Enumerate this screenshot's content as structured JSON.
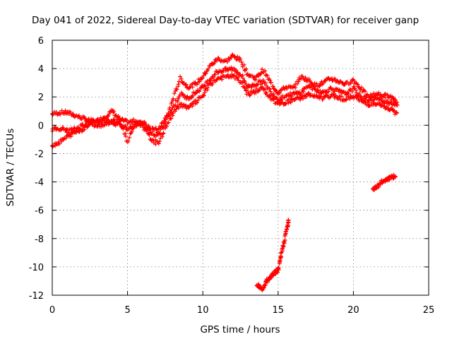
{
  "chart_data": {
    "type": "scatter",
    "title": "Day 041 of 2022, Sidereal Day-to-day VTEC variation (SDTVAR) for receiver ganp",
    "xlabel": "GPS time / hours",
    "ylabel": "SDTVAR / TECUs",
    "xlim": [
      0,
      25
    ],
    "ylim": [
      -12,
      6
    ],
    "xticks": [
      0,
      5,
      10,
      15,
      20,
      25
    ],
    "yticks": [
      -12,
      -10,
      -8,
      -6,
      -4,
      -2,
      0,
      2,
      4,
      6
    ],
    "grid": true,
    "marker": "+",
    "color": "#ff0000",
    "series": [
      {
        "name": "track-upper",
        "x": [
          0.0,
          0.5,
          1.0,
          1.5,
          2.0,
          2.5,
          3.0,
          3.5,
          4.0,
          4.5,
          5.0,
          5.5,
          6.0,
          6.5,
          7.0,
          7.5,
          8.0,
          8.5,
          9.0,
          9.5,
          10.0,
          10.5,
          11.0,
          11.5,
          12.0,
          12.5,
          13.0,
          13.5,
          14.0,
          14.5,
          15.0,
          15.5,
          16.0,
          16.5,
          17.0,
          17.5,
          18.0,
          18.5,
          19.0,
          19.5,
          20.0,
          20.5,
          21.0,
          21.5,
          22.0,
          22.5,
          22.9
        ],
        "y": [
          0.8,
          0.9,
          0.9,
          0.7,
          0.5,
          0.3,
          0.3,
          0.6,
          1.0,
          0.4,
          0.2,
          0.3,
          0.1,
          -0.4,
          -0.8,
          0.2,
          1.8,
          3.3,
          2.7,
          2.9,
          3.4,
          4.2,
          4.7,
          4.5,
          4.9,
          4.6,
          3.6,
          3.3,
          3.9,
          3.0,
          2.3,
          2.7,
          2.6,
          3.4,
          3.2,
          2.8,
          3.0,
          3.3,
          3.1,
          2.9,
          3.2,
          2.6,
          2.0,
          2.2,
          2.1,
          2.0,
          1.5
        ]
      },
      {
        "name": "track-middle",
        "x": [
          0.0,
          0.5,
          1.0,
          1.5,
          2.0,
          2.5,
          3.0,
          3.5,
          4.0,
          4.5,
          5.0,
          5.5,
          6.0,
          6.5,
          7.0,
          7.5,
          8.0,
          8.5,
          9.0,
          9.5,
          10.0,
          10.5,
          11.0,
          11.5,
          12.0,
          12.5,
          13.0,
          13.5,
          14.0,
          14.5,
          15.0,
          15.5,
          16.0,
          16.5,
          17.0,
          17.5,
          18.0,
          18.5,
          19.0,
          19.5,
          20.0,
          20.5,
          21.0,
          21.5,
          22.0,
          22.5,
          22.9
        ],
        "y": [
          -0.3,
          -0.2,
          -0.4,
          -0.3,
          0.0,
          0.2,
          0.3,
          0.4,
          0.2,
          0.0,
          -0.2,
          0.0,
          0.2,
          -0.2,
          -0.4,
          0.4,
          1.2,
          2.2,
          1.9,
          2.3,
          2.7,
          3.3,
          3.8,
          3.9,
          4.0,
          3.6,
          2.7,
          2.9,
          3.1,
          2.4,
          1.8,
          2.1,
          2.2,
          2.3,
          2.8,
          2.5,
          2.3,
          2.6,
          2.4,
          2.2,
          2.6,
          2.0,
          1.8,
          1.9,
          1.7,
          1.6,
          1.4
        ]
      },
      {
        "name": "track-lower",
        "x": [
          0.0,
          0.5,
          1.0,
          1.5,
          2.0,
          2.5,
          3.0,
          3.5,
          4.0,
          4.5,
          5.0,
          5.5,
          6.0,
          6.5,
          7.0,
          7.5,
          8.0,
          8.5,
          9.0,
          9.5,
          10.0,
          10.5,
          11.0,
          11.5,
          12.0,
          12.5,
          13.0,
          13.5,
          14.0,
          14.5,
          15.0,
          15.5,
          16.0,
          16.5,
          17.0,
          17.5,
          18.0,
          18.5,
          19.0,
          19.5,
          20.0,
          20.5,
          21.0,
          21.5,
          22.0,
          22.5,
          22.9
        ],
        "y": [
          -1.4,
          -1.2,
          -0.8,
          -0.5,
          -0.3,
          0.1,
          0.0,
          0.1,
          0.3,
          0.3,
          -1.2,
          0.2,
          0.0,
          -0.9,
          -1.3,
          -0.2,
          0.8,
          1.5,
          1.2,
          1.6,
          2.1,
          2.9,
          3.3,
          3.4,
          3.5,
          3.1,
          2.2,
          2.4,
          2.6,
          1.9,
          1.5,
          1.6,
          1.8,
          1.9,
          2.2,
          2.0,
          1.9,
          2.1,
          2.0,
          1.8,
          2.1,
          1.7,
          1.5,
          1.5,
          1.3,
          1.1,
          0.8
        ]
      },
      {
        "name": "track-steep",
        "x": [
          13.6,
          13.8,
          14.0,
          14.2,
          14.4,
          14.6,
          14.8,
          15.0,
          15.2,
          15.4,
          15.6,
          15.7
        ],
        "y": [
          -11.2,
          -11.4,
          -11.6,
          -11.0,
          -10.9,
          -10.6,
          -10.4,
          -10.2,
          -9.2,
          -8.2,
          -7.2,
          -6.8
        ]
      },
      {
        "name": "track-late",
        "x": [
          21.3,
          21.6,
          21.9,
          22.2,
          22.5,
          22.8
        ],
        "y": [
          -4.5,
          -4.3,
          -4.0,
          -3.8,
          -3.7,
          -3.6
        ]
      }
    ]
  }
}
